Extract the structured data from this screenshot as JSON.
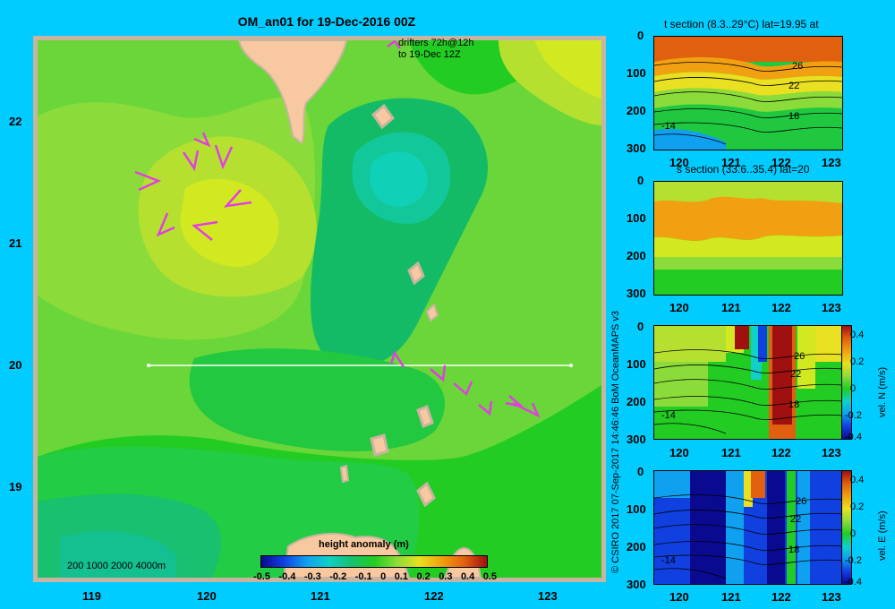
{
  "map": {
    "title": "OM_an01 for 19-Dec-2016 00Z",
    "drifters_line1": "drifters 72h@12h",
    "drifters_line2": "to 19-Dec 12Z",
    "depth_legend": "200  1000  2000  4000m",
    "lat_ticks": [
      "22",
      "21",
      "20",
      "19"
    ],
    "lon_ticks": [
      "119",
      "120",
      "121",
      "122",
      "123"
    ],
    "colorbar_title": "height anomaly (m)",
    "colorbar_ticks": [
      "-0.5",
      "-0.4",
      "-0.3",
      "-0.2",
      "-0.1",
      "0",
      "0.1",
      "0.2",
      "0.3",
      "0.4",
      "0.5"
    ],
    "section_line": {
      "lat": 20,
      "lon_start": 119.5,
      "lon_end": 123.2
    },
    "colors": {
      "background": "#00ccff",
      "land": "#f8c8a0",
      "coast_border": "#c8b4a0",
      "drifter": "#e040e0"
    }
  },
  "panels": [
    {
      "id": "t",
      "title": "t section (8.3..29°C) lat=19.95 at",
      "contour_labels": [
        "26",
        "22",
        "18",
        "-14"
      ],
      "y_ticks": [
        "0",
        "100",
        "200",
        "300"
      ],
      "x_ticks": [
        "120",
        "121",
        "122",
        "123"
      ]
    },
    {
      "id": "s",
      "title": "s section (33.6..35.4) lat=20",
      "contour_labels": [],
      "y_ticks": [
        "0",
        "100",
        "200",
        "300"
      ],
      "x_ticks": [
        "120",
        "121",
        "122",
        "123"
      ]
    },
    {
      "id": "vn",
      "title": "",
      "contour_labels": [
        "26",
        "22",
        "18",
        "-14"
      ],
      "y_ticks": [
        "0",
        "100",
        "200",
        "300"
      ],
      "x_ticks": [
        "120",
        "121",
        "122",
        "123"
      ],
      "cbar_label": "vel. N (m/s)",
      "cbar_ticks": [
        "0.4",
        "0.2",
        "0",
        "-0.2",
        "-0.4"
      ]
    },
    {
      "id": "ve",
      "title": "",
      "contour_labels": [
        "26",
        "22",
        "18",
        "-14"
      ],
      "y_ticks": [
        "0",
        "100",
        "200",
        "300"
      ],
      "x_ticks": [
        "120",
        "121",
        "122",
        "123"
      ],
      "cbar_label": "vel. E (m/s)",
      "cbar_ticks": [
        "0.4",
        "0.2",
        "0",
        "-0.2",
        "-0.4"
      ]
    }
  ],
  "credit": "© CSIRO 2017   07-Sep-2017 14:46:46 BoM OceanMAPS v3"
}
